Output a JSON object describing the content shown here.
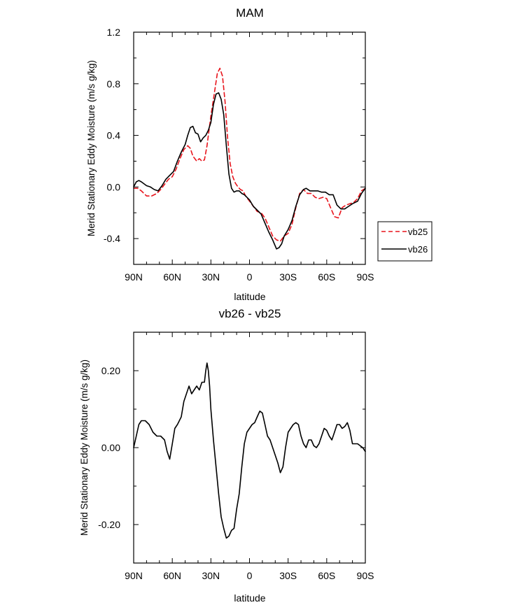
{
  "chart_data": [
    {
      "type": "line",
      "title": "MAM",
      "xlabel": "latitude",
      "ylabel": "Merid Stationary Eddy Moisture (m/s g/kg)",
      "xlim": [
        90,
        -90
      ],
      "ylim": [
        -0.6,
        1.2
      ],
      "xticks": [
        90,
        60,
        30,
        0,
        -30,
        -60,
        -90
      ],
      "xtick_labels": [
        "90N",
        "60N",
        "30N",
        "0",
        "30S",
        "60S",
        "90S"
      ],
      "yticks": [
        -0.4,
        0.0,
        0.4,
        0.8,
        1.2
      ],
      "ytick_labels": [
        "-0.4",
        "0.0",
        "0.4",
        "0.8",
        "1.2"
      ],
      "legend": {
        "position": "right",
        "entries": [
          "vb25",
          "vb26"
        ]
      },
      "series": [
        {
          "name": "vb25",
          "color": "#e8141c",
          "dash": "dashed",
          "x": [
            90,
            87,
            84,
            80,
            76,
            72,
            69,
            66,
            63,
            60,
            57,
            54,
            51,
            48,
            46,
            44,
            41,
            39,
            37,
            35,
            33,
            30,
            28,
            25,
            23,
            21,
            19,
            17,
            15,
            13,
            11,
            9,
            7,
            5,
            3,
            0,
            -3,
            -6,
            -9,
            -12,
            -15,
            -18,
            -21,
            -24,
            -27,
            -30,
            -33,
            -36,
            -39,
            -42,
            -45,
            -48,
            -51,
            -54,
            -57,
            -60,
            -63,
            -66,
            -69,
            -72,
            -75,
            -78,
            -81,
            -84,
            -87,
            -90
          ],
          "y": [
            -0.01,
            -0.01,
            -0.03,
            -0.07,
            -0.07,
            -0.05,
            -0.02,
            0.02,
            0.06,
            0.08,
            0.14,
            0.22,
            0.29,
            0.32,
            0.3,
            0.24,
            0.2,
            0.22,
            0.2,
            0.21,
            0.32,
            0.55,
            0.68,
            0.88,
            0.92,
            0.86,
            0.66,
            0.38,
            0.18,
            0.08,
            0.03,
            0.0,
            -0.02,
            -0.03,
            -0.07,
            -0.11,
            -0.15,
            -0.19,
            -0.2,
            -0.24,
            -0.31,
            -0.38,
            -0.41,
            -0.42,
            -0.38,
            -0.36,
            -0.29,
            -0.16,
            -0.05,
            -0.02,
            -0.05,
            -0.05,
            -0.08,
            -0.09,
            -0.08,
            -0.09,
            -0.16,
            -0.23,
            -0.24,
            -0.16,
            -0.14,
            -0.13,
            -0.12,
            -0.09,
            -0.03,
            -0.01
          ]
        },
        {
          "name": "vb26",
          "color": "#000000",
          "dash": "solid",
          "x": [
            90,
            88,
            86,
            84,
            80,
            77,
            74,
            71,
            68,
            65,
            62,
            59,
            56,
            53,
            50,
            48,
            46,
            44,
            42,
            40,
            38,
            36,
            34,
            32,
            30,
            28,
            26,
            24,
            22,
            20,
            18,
            16,
            14,
            12,
            10,
            8,
            6,
            4,
            2,
            0,
            -3,
            -6,
            -9,
            -12,
            -15,
            -18,
            -21,
            -23,
            -25,
            -27,
            -30,
            -33,
            -36,
            -39,
            -42,
            -44,
            -47,
            -50,
            -53,
            -56,
            -59,
            -62,
            -65,
            -68,
            -71,
            -74,
            -77,
            -80,
            -84,
            -87,
            -90
          ],
          "y": [
            0.0,
            0.04,
            0.05,
            0.04,
            0.01,
            0.0,
            -0.02,
            -0.03,
            0.01,
            0.06,
            0.09,
            0.12,
            0.2,
            0.27,
            0.33,
            0.4,
            0.46,
            0.47,
            0.42,
            0.41,
            0.35,
            0.38,
            0.4,
            0.44,
            0.5,
            0.64,
            0.72,
            0.73,
            0.68,
            0.56,
            0.32,
            0.1,
            -0.01,
            -0.04,
            -0.03,
            -0.03,
            -0.05,
            -0.06,
            -0.08,
            -0.1,
            -0.15,
            -0.18,
            -0.21,
            -0.28,
            -0.35,
            -0.41,
            -0.48,
            -0.47,
            -0.44,
            -0.38,
            -0.33,
            -0.26,
            -0.15,
            -0.06,
            -0.02,
            -0.01,
            -0.03,
            -0.03,
            -0.03,
            -0.04,
            -0.04,
            -0.06,
            -0.06,
            -0.14,
            -0.17,
            -0.17,
            -0.15,
            -0.13,
            -0.11,
            -0.05,
            -0.01
          ]
        }
      ]
    },
    {
      "type": "line",
      "title": "vb26 - vb25",
      "xlabel": "latitude",
      "ylabel": "Merid Stationary Eddy Moisture (m/s g/kg)",
      "xlim": [
        90,
        -90
      ],
      "ylim": [
        -0.3,
        0.3
      ],
      "xticks": [
        90,
        60,
        30,
        0,
        -30,
        -60,
        -90
      ],
      "xtick_labels": [
        "90N",
        "60N",
        "30N",
        "0",
        "30S",
        "60S",
        "90S"
      ],
      "yticks": [
        -0.2,
        0.0,
        0.2
      ],
      "ytick_labels": [
        "-0.20",
        "0.00",
        "0.20"
      ],
      "series": [
        {
          "name": "vb26 - vb25",
          "color": "#000000",
          "dash": "solid",
          "x": [
            90,
            88,
            86,
            84,
            81,
            78,
            75,
            72,
            69,
            66,
            64,
            62,
            60,
            58,
            56,
            53,
            51,
            49,
            47,
            45,
            43,
            41,
            39,
            37,
            35,
            34,
            33,
            32,
            31,
            30,
            28,
            26,
            24,
            22,
            20,
            18,
            16,
            14,
            12,
            10,
            8,
            6,
            4,
            2,
            0,
            -2,
            -4,
            -6,
            -8,
            -10,
            -12,
            -14,
            -16,
            -18,
            -20,
            -22,
            -24,
            -26,
            -28,
            -30,
            -32,
            -34,
            -36,
            -38,
            -40,
            -42,
            -44,
            -46,
            -48,
            -50,
            -52,
            -54,
            -56,
            -58,
            -60,
            -62,
            -64,
            -66,
            -68,
            -70,
            -72,
            -74,
            -76,
            -78,
            -80,
            -82,
            -84,
            -86,
            -88,
            -90
          ],
          "y": [
            0.0,
            0.03,
            0.06,
            0.07,
            0.07,
            0.06,
            0.04,
            0.03,
            0.03,
            0.02,
            -0.01,
            -0.03,
            0.01,
            0.05,
            0.06,
            0.08,
            0.12,
            0.14,
            0.16,
            0.14,
            0.15,
            0.16,
            0.15,
            0.17,
            0.17,
            0.2,
            0.22,
            0.2,
            0.16,
            0.1,
            0.02,
            -0.05,
            -0.12,
            -0.18,
            -0.21,
            -0.235,
            -0.23,
            -0.215,
            -0.21,
            -0.16,
            -0.12,
            -0.05,
            0.01,
            0.04,
            0.05,
            0.06,
            0.065,
            0.08,
            0.095,
            0.09,
            0.06,
            0.03,
            0.02,
            0.0,
            -0.02,
            -0.04,
            -0.065,
            -0.05,
            0.0,
            0.04,
            0.05,
            0.06,
            0.065,
            0.06,
            0.03,
            0.01,
            0.0,
            0.02,
            0.02,
            0.005,
            0.0,
            0.01,
            0.03,
            0.05,
            0.045,
            0.03,
            0.02,
            0.04,
            0.06,
            0.06,
            0.05,
            0.055,
            0.065,
            0.045,
            0.01,
            0.01,
            0.01,
            0.005,
            0.0,
            -0.01
          ]
        }
      ]
    }
  ]
}
